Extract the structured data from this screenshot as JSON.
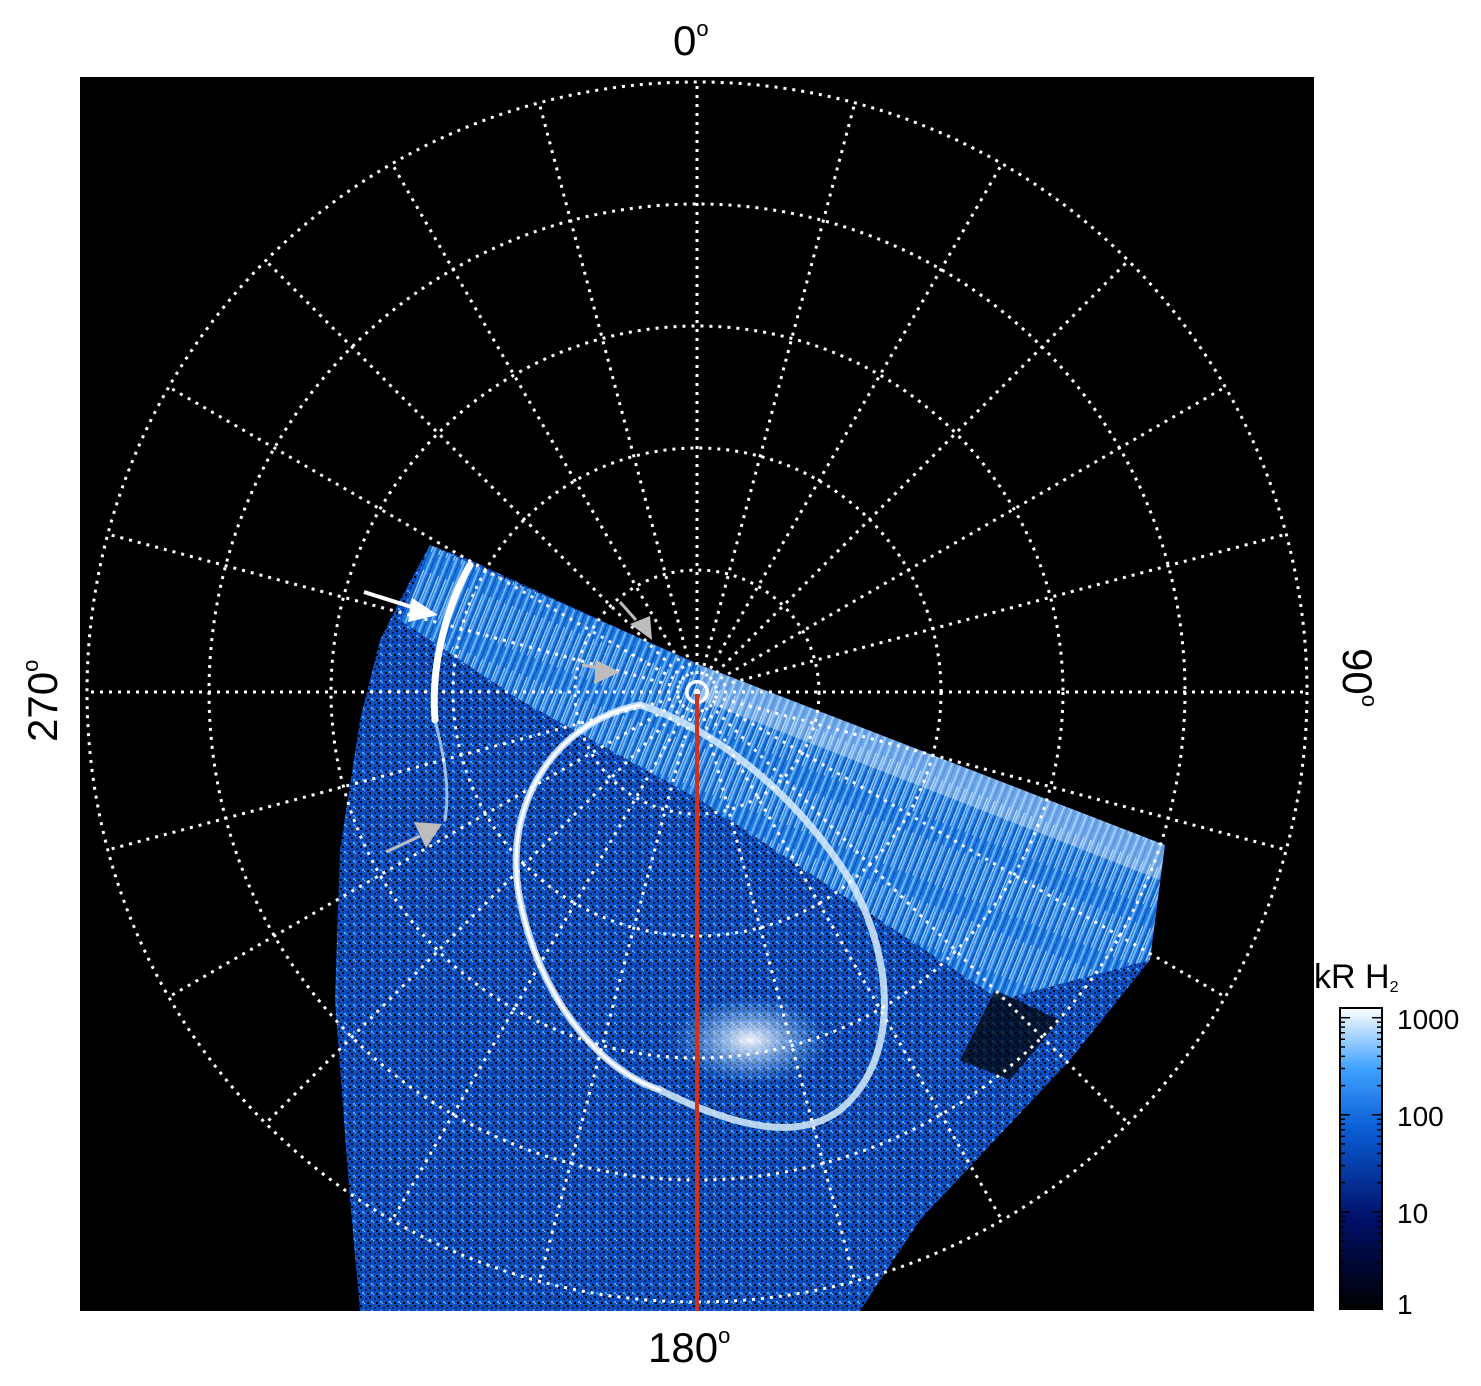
{
  "figure": {
    "axis_labels": {
      "top": "0",
      "bottom": "180",
      "left": "270",
      "right": "90",
      "degree_symbol": "o"
    },
    "colorbar": {
      "title_main": "kR H",
      "title_subscript": "2",
      "scale": "log",
      "ticks": [
        "1000",
        "100",
        "10",
        "1"
      ],
      "colors": {
        "low": "#000000",
        "mid_low": "#00106a",
        "mid": "#0a5ed6",
        "mid_high": "#3fa2ff",
        "high": "#ffffff"
      }
    },
    "grid": {
      "style": "dotted",
      "color": "#ffffff",
      "meridian_step_deg": 15,
      "rings": 5
    },
    "colors": {
      "background": "#000000",
      "reference_line": "#d0321c",
      "arrow_white": "#ffffff",
      "arrow_gray": "#bdbdbd"
    }
  }
}
